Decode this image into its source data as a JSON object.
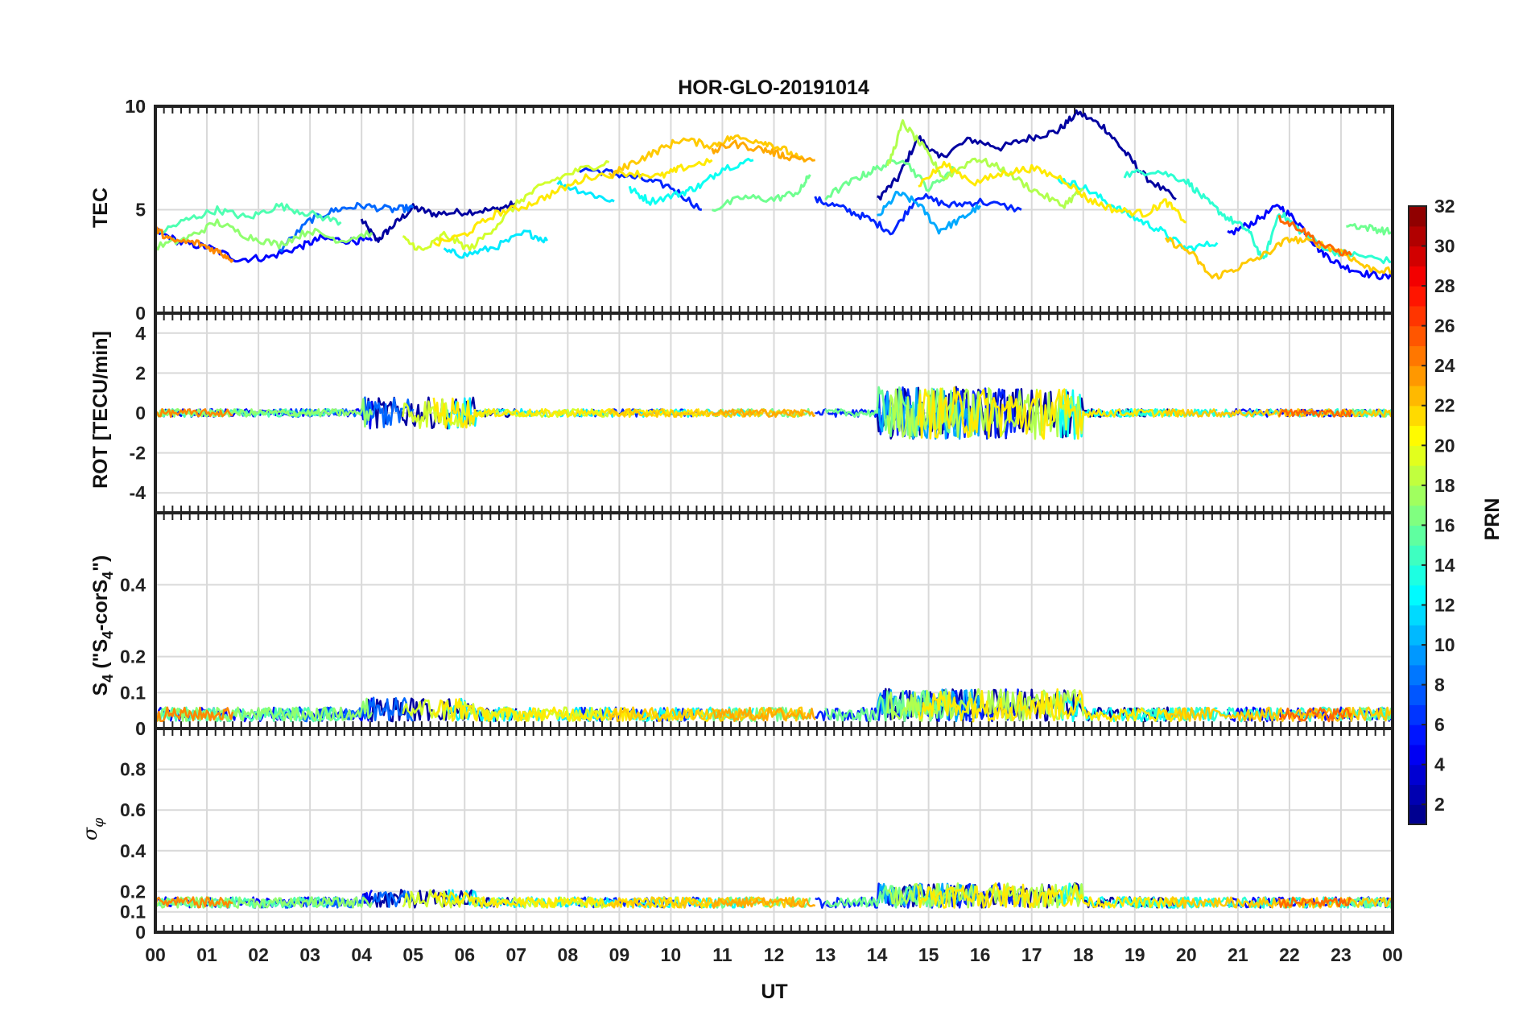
{
  "chart_data": {
    "type": "line",
    "title": "HOR-GLO-20191014",
    "xlabel": "UT",
    "x_ticks": [
      "00",
      "01",
      "02",
      "03",
      "04",
      "05",
      "06",
      "07",
      "08",
      "09",
      "10",
      "11",
      "12",
      "13",
      "14",
      "15",
      "16",
      "17",
      "18",
      "19",
      "20",
      "21",
      "22",
      "23",
      "00"
    ],
    "xlim": [
      0,
      24
    ],
    "grid": true,
    "panels": [
      {
        "id": "tec",
        "ylabel": "TEC",
        "ylim": [
          0,
          10
        ],
        "yticks": [
          "0",
          "5",
          "10"
        ],
        "ytick_values": [
          0,
          5,
          10
        ],
        "description_range": "values 2-10 TECU"
      },
      {
        "id": "rot",
        "ylabel": "ROT [TECU/min]",
        "ylim": [
          -5,
          5
        ],
        "yticks": [
          "-4",
          "-2",
          "0",
          "2",
          "4"
        ],
        "ytick_values": [
          -4,
          -2,
          0,
          2,
          4
        ]
      },
      {
        "id": "s4",
        "ylabel": "S4 (\"S4-corS4\")",
        "ylim": [
          0,
          0.6
        ],
        "yticks": [
          "0",
          "0",
          "0.1",
          "0.2",
          "0.4"
        ],
        "ytick_values": [
          0,
          0.0,
          0.1,
          0.2,
          0.4
        ]
      },
      {
        "id": "sigma",
        "ylabel": "σ φ",
        "ylim": [
          0,
          1
        ],
        "yticks": [
          "0",
          "0.1",
          "0.2",
          "0.4",
          "0.6",
          "0.8"
        ],
        "ytick_values": [
          0,
          0.1,
          0.2,
          0.4,
          0.6,
          0.8
        ]
      }
    ],
    "colorbar": {
      "label": "PRN",
      "range": [
        1,
        32
      ],
      "ticks": [
        "2",
        "4",
        "6",
        "8",
        "10",
        "12",
        "14",
        "16",
        "18",
        "20",
        "22",
        "24",
        "26",
        "28",
        "30",
        "32"
      ],
      "colormap": "jet"
    },
    "series": [
      {
        "prn": 2,
        "tec": [
          [
            4.0,
            4.5
          ],
          [
            4.3,
            3.5
          ],
          [
            4.6,
            4.2
          ],
          [
            5.0,
            5.1
          ],
          [
            5.4,
            4.8
          ],
          [
            6.0,
            4.9
          ],
          [
            6.6,
            5.0
          ],
          [
            7.0,
            5.3
          ]
        ]
      },
      {
        "prn": 2,
        "tec": [
          [
            14.0,
            5.5
          ],
          [
            14.4,
            6.5
          ],
          [
            14.8,
            8.5
          ],
          [
            15.2,
            7.5
          ],
          [
            15.8,
            8.4
          ],
          [
            16.4,
            8.0
          ],
          [
            17.0,
            8.5
          ],
          [
            17.5,
            8.8
          ],
          [
            17.9,
            9.7
          ],
          [
            18.4,
            9.0
          ],
          [
            18.8,
            7.8
          ],
          [
            19.2,
            6.6
          ],
          [
            19.8,
            5.5
          ]
        ]
      },
      {
        "prn": 5,
        "tec": [
          [
            0.0,
            4.0
          ],
          [
            0.5,
            3.4
          ],
          [
            1.0,
            3.2
          ],
          [
            1.6,
            2.6
          ],
          [
            2.2,
            2.7
          ],
          [
            2.8,
            3.2
          ],
          [
            3.2,
            3.6
          ],
          [
            3.8,
            3.5
          ],
          [
            4.2,
            3.5
          ]
        ]
      },
      {
        "prn": 5,
        "tec": [
          [
            20.8,
            3.8
          ],
          [
            21.3,
            4.4
          ],
          [
            21.8,
            5.2
          ],
          [
            22.2,
            4.3
          ],
          [
            22.6,
            3.0
          ],
          [
            23.0,
            2.3
          ],
          [
            23.5,
            1.9
          ],
          [
            24.0,
            1.7
          ]
        ]
      },
      {
        "prn": 6,
        "tec": [
          [
            8.2,
            7.0
          ],
          [
            8.8,
            6.8
          ],
          [
            9.4,
            6.5
          ],
          [
            10.0,
            6.1
          ],
          [
            10.6,
            5.0
          ]
        ]
      },
      {
        "prn": 6,
        "tec": [
          [
            12.8,
            5.5
          ],
          [
            13.3,
            5.1
          ],
          [
            13.8,
            4.6
          ],
          [
            14.3,
            3.9
          ],
          [
            14.8,
            5.7
          ],
          [
            15.4,
            5.2
          ],
          [
            16.0,
            5.4
          ],
          [
            16.8,
            5.0
          ]
        ]
      },
      {
        "prn": 8,
        "tec": [
          [
            2.4,
            3.0
          ],
          [
            3.0,
            4.5
          ],
          [
            3.5,
            5.0
          ],
          [
            4.0,
            5.2
          ],
          [
            4.6,
            5.0
          ],
          [
            5.0,
            5.1
          ]
        ]
      },
      {
        "prn": 10,
        "tec": [
          [
            14.0,
            4.6
          ],
          [
            14.4,
            5.8
          ],
          [
            14.8,
            5.3
          ],
          [
            15.2,
            4.0
          ],
          [
            15.6,
            4.5
          ],
          [
            16.0,
            5.2
          ]
        ]
      },
      {
        "prn": 12,
        "tec": [
          [
            5.6,
            3.0
          ],
          [
            6.0,
            2.8
          ],
          [
            6.6,
            3.2
          ],
          [
            7.2,
            3.9
          ],
          [
            7.6,
            3.5
          ]
        ]
      },
      {
        "prn": 12,
        "tec": [
          [
            7.8,
            6.3
          ],
          [
            8.4,
            5.8
          ],
          [
            8.9,
            5.4
          ]
        ]
      },
      {
        "prn": 13,
        "tec": [
          [
            9.2,
            6.0
          ],
          [
            9.6,
            5.4
          ],
          [
            10.2,
            5.8
          ],
          [
            10.6,
            6.2
          ],
          [
            11.0,
            7.0
          ],
          [
            11.6,
            7.4
          ]
        ]
      },
      {
        "prn": 13,
        "tec": [
          [
            17.5,
            6.5
          ],
          [
            18.0,
            6.1
          ],
          [
            18.5,
            5.3
          ],
          [
            19.0,
            4.6
          ],
          [
            19.5,
            4.0
          ],
          [
            20.0,
            3.1
          ],
          [
            20.6,
            3.4
          ]
        ]
      },
      {
        "prn": 14,
        "tec": [
          [
            18.8,
            6.7
          ],
          [
            19.4,
            6.9
          ],
          [
            20.0,
            6.4
          ],
          [
            20.4,
            5.4
          ],
          [
            20.8,
            4.6
          ],
          [
            21.2,
            4.0
          ],
          [
            21.5,
            2.5
          ],
          [
            21.8,
            4.9
          ],
          [
            22.2,
            4.0
          ],
          [
            22.8,
            3.0
          ],
          [
            23.3,
            2.8
          ],
          [
            24.0,
            2.5
          ]
        ]
      },
      {
        "prn": 15,
        "tec": [
          [
            0.0,
            3.8
          ],
          [
            0.6,
            4.5
          ],
          [
            1.2,
            5.0
          ],
          [
            1.8,
            4.6
          ],
          [
            2.4,
            5.2
          ],
          [
            3.0,
            4.8
          ],
          [
            3.6,
            4.4
          ]
        ]
      },
      {
        "prn": 16,
        "tec": [
          [
            10.8,
            5.0
          ],
          [
            11.4,
            5.6
          ],
          [
            12.0,
            5.5
          ],
          [
            12.5,
            5.9
          ],
          [
            12.7,
            6.7
          ]
        ]
      },
      {
        "prn": 16,
        "tec": [
          [
            13.0,
            5.6
          ],
          [
            13.6,
            6.5
          ],
          [
            14.0,
            7.0
          ],
          [
            14.5,
            7.5
          ],
          [
            15.0,
            6.0
          ],
          [
            15.5,
            7.0
          ]
        ]
      },
      {
        "prn": 16,
        "tec": [
          [
            23.1,
            4.3
          ],
          [
            23.6,
            4.1
          ],
          [
            24.0,
            3.9
          ]
        ]
      },
      {
        "prn": 17,
        "tec": [
          [
            0.0,
            3.2
          ],
          [
            0.6,
            3.6
          ],
          [
            1.2,
            4.4
          ],
          [
            1.8,
            3.7
          ],
          [
            2.4,
            3.3
          ],
          [
            3.0,
            4.0
          ],
          [
            3.6,
            3.5
          ],
          [
            4.2,
            3.9
          ]
        ]
      },
      {
        "prn": 18,
        "tec": [
          [
            14.2,
            7.0
          ],
          [
            14.5,
            9.2
          ],
          [
            14.9,
            8.0
          ],
          [
            15.3,
            6.5
          ],
          [
            15.9,
            7.5
          ],
          [
            16.4,
            7.0
          ],
          [
            17.0,
            6.0
          ],
          [
            17.6,
            5.2
          ],
          [
            18.0,
            6.0
          ]
        ]
      },
      {
        "prn": 19,
        "tec": [
          [
            4.8,
            3.6
          ],
          [
            5.2,
            3.0
          ],
          [
            5.6,
            3.8
          ],
          [
            6.1,
            3.1
          ],
          [
            6.6,
            4.2
          ],
          [
            7.1,
            5.5
          ],
          [
            7.6,
            6.3
          ],
          [
            8.2,
            6.9
          ],
          [
            8.8,
            7.3
          ]
        ]
      },
      {
        "prn": 21,
        "tec": [
          [
            14.8,
            6.2
          ],
          [
            15.3,
            7.2
          ],
          [
            15.9,
            6.3
          ],
          [
            16.5,
            6.8
          ],
          [
            17.0,
            7.0
          ],
          [
            17.6,
            6.5
          ],
          [
            18.1,
            5.5
          ],
          [
            18.6,
            5.0
          ],
          [
            19.2,
            4.8
          ],
          [
            19.6,
            5.4
          ],
          [
            20.0,
            4.4
          ]
        ]
      },
      {
        "prn": 21,
        "tec": [
          [
            5.4,
            3.3
          ],
          [
            6.0,
            3.8
          ],
          [
            6.6,
            4.8
          ],
          [
            7.2,
            5.2
          ],
          [
            7.8,
            5.9
          ],
          [
            8.4,
            6.6
          ],
          [
            9.2,
            6.8
          ],
          [
            9.8,
            6.6
          ],
          [
            10.2,
            7.0
          ],
          [
            10.8,
            7.4
          ]
        ]
      },
      {
        "prn": 22,
        "tec": [
          [
            8.8,
            6.6
          ],
          [
            9.2,
            7.2
          ],
          [
            9.7,
            7.8
          ],
          [
            10.2,
            8.4
          ],
          [
            10.8,
            8.1
          ],
          [
            11.2,
            8.5
          ],
          [
            11.8,
            8.3
          ],
          [
            12.2,
            7.9
          ],
          [
            12.6,
            7.3
          ]
        ]
      },
      {
        "prn": 22,
        "tec": [
          [
            19.6,
            3.6
          ],
          [
            20.1,
            2.9
          ],
          [
            20.5,
            1.7
          ],
          [
            21.0,
            2.2
          ],
          [
            21.5,
            2.8
          ],
          [
            22.0,
            3.6
          ],
          [
            22.5,
            3.4
          ],
          [
            23.0,
            3.0
          ],
          [
            23.5,
            2.2
          ],
          [
            24.0,
            2.0
          ]
        ]
      },
      {
        "prn": 23,
        "tec": [
          [
            10.8,
            7.8
          ],
          [
            11.2,
            8.2
          ],
          [
            11.8,
            7.9
          ],
          [
            12.2,
            7.6
          ],
          [
            12.8,
            7.4
          ]
        ]
      },
      {
        "prn": 24,
        "tec": [
          [
            0.0,
            4.1
          ],
          [
            0.3,
            3.5
          ],
          [
            0.8,
            3.4
          ],
          [
            1.2,
            3.0
          ],
          [
            1.5,
            2.6
          ]
        ]
      },
      {
        "prn": 25,
        "tec": [
          [
            21.8,
            4.6
          ],
          [
            22.2,
            4.1
          ],
          [
            22.7,
            3.2
          ],
          [
            23.2,
            2.8
          ]
        ]
      }
    ]
  }
}
